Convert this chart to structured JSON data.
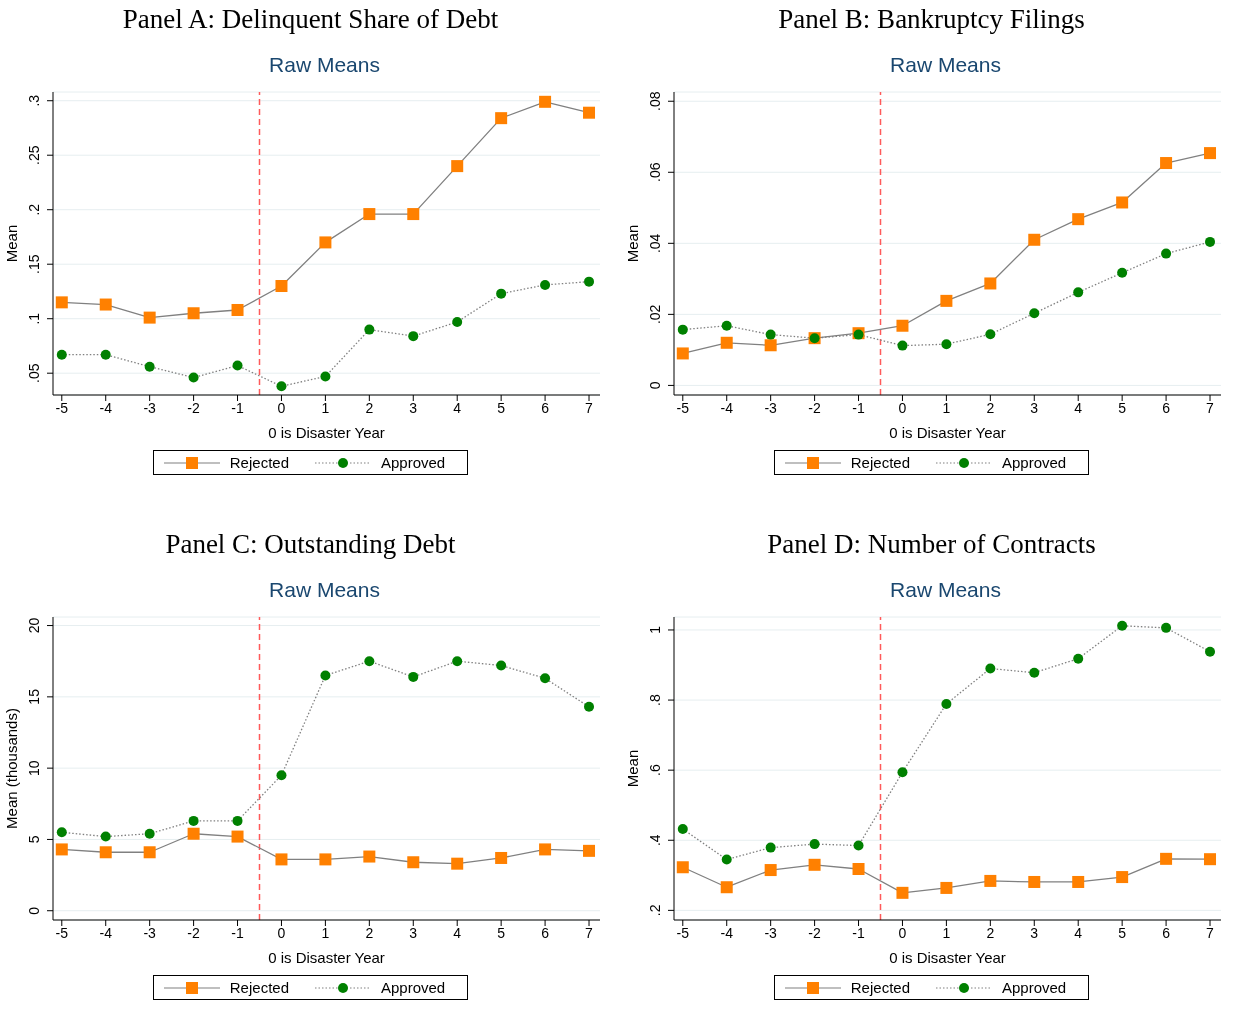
{
  "chart_data": [
    {
      "type": "line",
      "title": "Panel A: Delinquent Share of Debt",
      "subtitle": "Raw Means",
      "xlabel": "0 is Disaster Year",
      "ylabel": "Mean",
      "x": [
        -5,
        -4,
        -3,
        -2,
        -1,
        0,
        1,
        2,
        3,
        4,
        5,
        6,
        7
      ],
      "xlim": [
        -5.2,
        7.25
      ],
      "xticks": [
        -5,
        -4,
        -3,
        -2,
        -1,
        0,
        1,
        2,
        3,
        4,
        5,
        6,
        7
      ],
      "ylim": [
        0.03,
        0.308
      ],
      "yticks": [
        {
          "value": 0.05,
          "label": ".05"
        },
        {
          "value": 0.1,
          "label": ".1"
        },
        {
          "value": 0.15,
          "label": ".15"
        },
        {
          "value": 0.2,
          "label": ".2"
        },
        {
          "value": 0.25,
          "label": ".25"
        },
        {
          "value": 0.3,
          "label": ".3"
        }
      ],
      "grid": "y",
      "legend": "bottom",
      "ref_lines": [
        {
          "axis": "x",
          "value": -0.5,
          "color": "#ff5a5a",
          "line_style": "dashed"
        }
      ],
      "series": [
        {
          "name": "Rejected",
          "color": "#ff8000",
          "marker": "square",
          "line_style": "solid",
          "values": [
            0.115,
            0.113,
            0.101,
            0.105,
            0.108,
            0.13,
            0.17,
            0.196,
            0.196,
            0.24,
            0.284,
            0.299,
            0.289
          ]
        },
        {
          "name": "Approved",
          "color": "#008000",
          "marker": "circle",
          "line_style": "dotted",
          "values": [
            0.067,
            0.067,
            0.056,
            0.046,
            0.057,
            0.038,
            0.047,
            0.09,
            0.084,
            0.097,
            0.123,
            0.131,
            0.134
          ]
        }
      ]
    },
    {
      "type": "line",
      "title": "Panel B: Bankruptcy Filings",
      "subtitle": "Raw Means",
      "xlabel": "0 is Disaster Year",
      "ylabel": "Mean",
      "x": [
        -5,
        -4,
        -3,
        -2,
        -1,
        0,
        1,
        2,
        3,
        4,
        5,
        6,
        7
      ],
      "xlim": [
        -5.2,
        7.25
      ],
      "xticks": [
        -5,
        -4,
        -3,
        -2,
        -1,
        0,
        1,
        2,
        3,
        4,
        5,
        6,
        7
      ],
      "ylim": [
        -0.0027,
        0.0826
      ],
      "yticks": [
        {
          "value": 0,
          "label": "0"
        },
        {
          "value": 0.02,
          "label": ".02"
        },
        {
          "value": 0.04,
          "label": ".04"
        },
        {
          "value": 0.06,
          "label": ".06"
        },
        {
          "value": 0.08,
          "label": ".08"
        }
      ],
      "grid": "y",
      "legend": "bottom",
      "ref_lines": [
        {
          "axis": "x",
          "value": -0.5,
          "color": "#ff5a5a",
          "line_style": "dashed"
        }
      ],
      "series": [
        {
          "name": "Rejected",
          "color": "#ff8000",
          "marker": "square",
          "line_style": "solid",
          "values": [
            0.009,
            0.012,
            0.0113,
            0.0133,
            0.0147,
            0.0168,
            0.0238,
            0.0287,
            0.041,
            0.0468,
            0.0515,
            0.0626,
            0.0654
          ]
        },
        {
          "name": "Approved",
          "color": "#008000",
          "marker": "circle",
          "line_style": "dotted",
          "values": [
            0.0157,
            0.0168,
            0.0143,
            0.0133,
            0.0143,
            0.0112,
            0.0116,
            0.0144,
            0.0203,
            0.0262,
            0.0317,
            0.0371,
            0.0404
          ]
        }
      ]
    },
    {
      "type": "line",
      "title": "Panel C: Outstanding Debt",
      "subtitle": "Raw Means",
      "xlabel": "0 is Disaster Year",
      "ylabel": "Mean (thousands)",
      "x": [
        -5,
        -4,
        -3,
        -2,
        -1,
        0,
        1,
        2,
        3,
        4,
        5,
        6,
        7
      ],
      "xlim": [
        -5.2,
        7.25
      ],
      "xticks": [
        -5,
        -4,
        -3,
        -2,
        -1,
        0,
        1,
        2,
        3,
        4,
        5,
        6,
        7
      ],
      "ylim": [
        -0.65,
        20.6
      ],
      "yticks": [
        0,
        5,
        10,
        15,
        20
      ],
      "grid": "y",
      "legend": "bottom",
      "ref_lines": [
        {
          "axis": "x",
          "value": -0.5,
          "color": "#ff5a5a",
          "line_style": "dashed"
        }
      ],
      "series": [
        {
          "name": "Rejected",
          "color": "#ff8000",
          "marker": "square",
          "line_style": "solid",
          "values": [
            4.3,
            4.1,
            4.1,
            5.4,
            5.2,
            3.6,
            3.6,
            3.8,
            3.4,
            3.3,
            3.7,
            4.3,
            4.2
          ]
        },
        {
          "name": "Approved",
          "color": "#008000",
          "marker": "circle",
          "line_style": "dotted",
          "values": [
            5.5,
            5.2,
            5.4,
            6.3,
            6.3,
            9.5,
            16.5,
            17.5,
            16.4,
            17.5,
            17.2,
            16.3,
            14.3
          ]
        }
      ]
    },
    {
      "type": "line",
      "title": "Panel D: Number of Contracts",
      "subtitle": "Raw Means",
      "xlabel": "0 is Disaster Year",
      "ylabel": "Mean",
      "x": [
        -5,
        -4,
        -3,
        -2,
        -1,
        0,
        1,
        2,
        3,
        4,
        5,
        6,
        7
      ],
      "xlim": [
        -5.2,
        7.25
      ],
      "xticks": [
        -5,
        -4,
        -3,
        -2,
        -1,
        0,
        1,
        2,
        3,
        4,
        5,
        6,
        7
      ],
      "ylim": [
        0.1725,
        1.037
      ],
      "yticks": [
        {
          "value": 0.2,
          "label": ".2"
        },
        {
          "value": 0.4,
          "label": ".4"
        },
        {
          "value": 0.6,
          "label": ".6"
        },
        {
          "value": 0.8,
          "label": ".8"
        },
        {
          "value": 1,
          "label": "1"
        }
      ],
      "grid": "y",
      "legend": "bottom",
      "ref_lines": [
        {
          "axis": "x",
          "value": -0.5,
          "color": "#ff5a5a",
          "line_style": "dashed"
        }
      ],
      "series": [
        {
          "name": "Rejected",
          "color": "#ff8000",
          "marker": "square",
          "line_style": "solid",
          "values": [
            0.323,
            0.266,
            0.315,
            0.33,
            0.318,
            0.25,
            0.264,
            0.284,
            0.281,
            0.281,
            0.295,
            0.347,
            0.346
          ]
        },
        {
          "name": "Approved",
          "color": "#008000",
          "marker": "circle",
          "line_style": "dotted",
          "values": [
            0.432,
            0.345,
            0.379,
            0.389,
            0.385,
            0.594,
            0.789,
            0.89,
            0.878,
            0.918,
            1.012,
            1.006,
            0.938
          ]
        }
      ]
    }
  ]
}
